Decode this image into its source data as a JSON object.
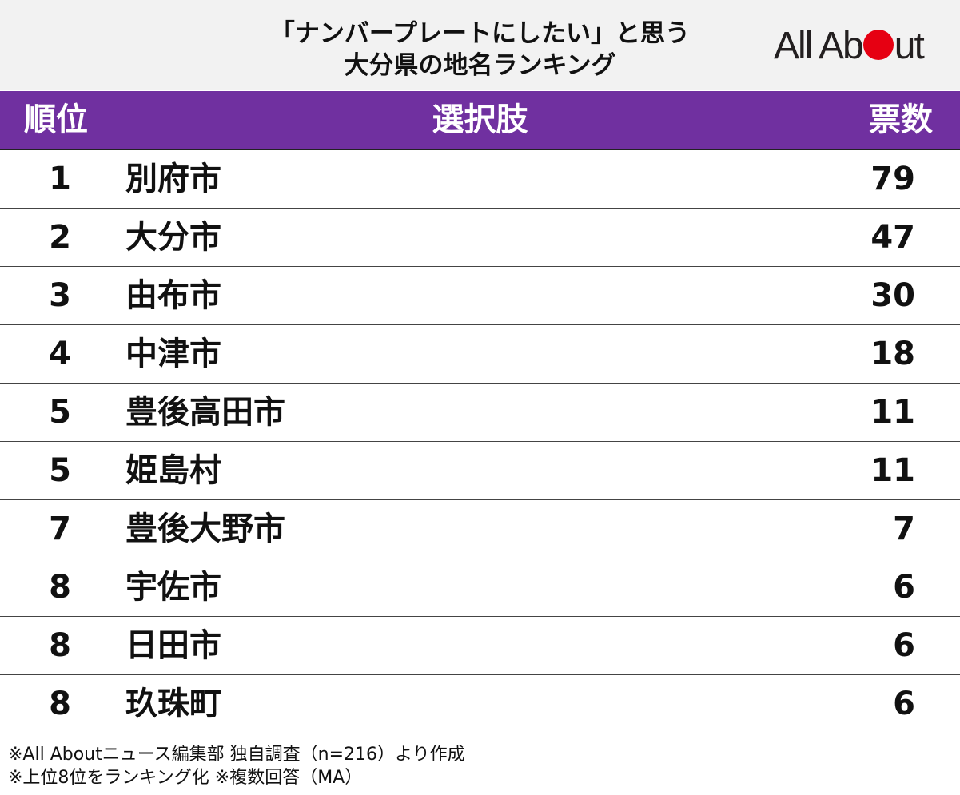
{
  "title": {
    "line1": "「ナンバープレートにしたい」と思う",
    "line2": "大分県の地名ランキング"
  },
  "logo": {
    "pre": "All Ab",
    "post": "ut",
    "text": "All About"
  },
  "colors": {
    "header": "#7030a0",
    "logo_dot": "#e60012",
    "title_bg": "#f2f2f2"
  },
  "chart_data": {
    "type": "table",
    "columns": [
      "順位",
      "選択肢",
      "票数"
    ],
    "rows": [
      {
        "rank": "1",
        "name": "別府市",
        "votes": "79"
      },
      {
        "rank": "2",
        "name": "大分市",
        "votes": "47"
      },
      {
        "rank": "3",
        "name": "由布市",
        "votes": "30"
      },
      {
        "rank": "4",
        "name": "中津市",
        "votes": "18"
      },
      {
        "rank": "5",
        "name": "豊後高田市",
        "votes": "11"
      },
      {
        "rank": "5",
        "name": "姫島村",
        "votes": "11"
      },
      {
        "rank": "7",
        "name": "豊後大野市",
        "votes": "7"
      },
      {
        "rank": "8",
        "name": "宇佐市",
        "votes": "6"
      },
      {
        "rank": "8",
        "name": "日田市",
        "votes": "6"
      },
      {
        "rank": "8",
        "name": "玖珠町",
        "votes": "6"
      }
    ]
  },
  "notes": [
    "※All Aboutニュース編集部 独自調査（n=216）より作成",
    "※上位8位をランキング化 ※複数回答（MA）"
  ]
}
